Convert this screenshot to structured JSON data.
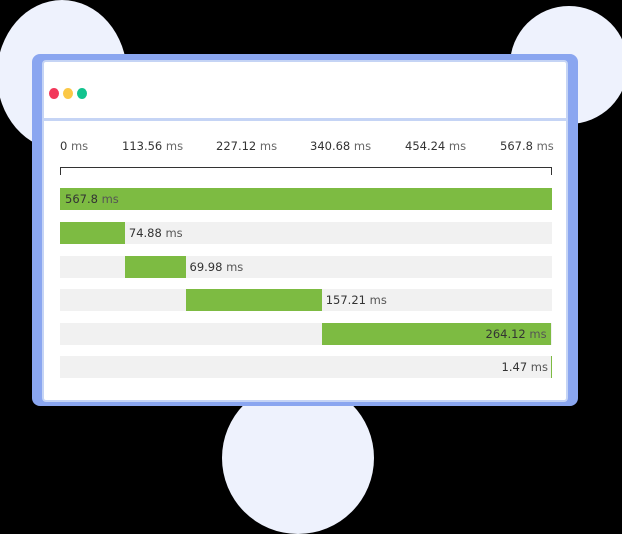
{
  "window": {
    "controls": [
      {
        "name": "close",
        "color": "#f2385a"
      },
      {
        "name": "minimize",
        "color": "#fbc846"
      },
      {
        "name": "maximize",
        "color": "#12c38e"
      }
    ]
  },
  "chart_data": {
    "type": "bar",
    "subtype": "waterfall-timeline",
    "title": "",
    "xlabel": "",
    "ylabel": "",
    "unit": "ms",
    "xlim": [
      0,
      567.8
    ],
    "ticks": [
      {
        "value": "0",
        "unit": "ms"
      },
      {
        "value": "113.56",
        "unit": "ms"
      },
      {
        "value": "227.12",
        "unit": "ms"
      },
      {
        "value": "340.68",
        "unit": "ms"
      },
      {
        "value": "454.24",
        "unit": "ms"
      },
      {
        "value": "567.8",
        "unit": "ms"
      }
    ],
    "bars": [
      {
        "start": 0,
        "duration": 567.8,
        "label": "567.8",
        "unit": "ms"
      },
      {
        "start": 0,
        "duration": 74.88,
        "label": "74.88",
        "unit": "ms"
      },
      {
        "start": 74.88,
        "duration": 69.98,
        "label": "69.98",
        "unit": "ms"
      },
      {
        "start": 144.86,
        "duration": 157.21,
        "label": "157.21",
        "unit": "ms"
      },
      {
        "start": 302.07,
        "duration": 264.12,
        "label": "264.12",
        "unit": "ms"
      },
      {
        "start": 566.19,
        "duration": 1.47,
        "label": "1.47",
        "unit": "ms"
      }
    ],
    "bar_color": "#7dbb42",
    "track_color": "#f1f1f1",
    "grid": false,
    "legend": "none"
  }
}
